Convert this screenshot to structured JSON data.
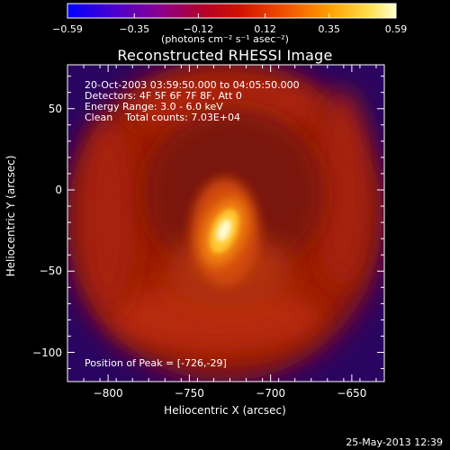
{
  "chart_data": {
    "type": "heatmap",
    "title": "Reconstructed RHESSI Image",
    "xlabel": "Heliocentric X (arcsec)",
    "ylabel": "Heliocentric Y (arcsec)",
    "xlim": [
      -825,
      -630
    ],
    "ylim": [
      -118,
      77
    ],
    "x_ticks": [
      -800,
      -750,
      -700,
      -650
    ],
    "y_ticks": [
      -100,
      -50,
      0,
      50
    ],
    "x_tick_labels": [
      "−800",
      "−750",
      "−700",
      "−650"
    ],
    "y_tick_labels": [
      "−100",
      "−50",
      "0",
      "50"
    ],
    "colorbar": {
      "range": [
        -0.59,
        0.59
      ],
      "ticks": [
        -0.59,
        -0.35,
        -0.12,
        0.12,
        0.35,
        0.59
      ],
      "tick_labels": [
        "−0.59",
        "−0.35",
        "−0.12",
        "0.12",
        "0.35",
        "0.59"
      ],
      "units": "(photons cm⁻² s⁻¹ asec⁻²)",
      "colormap": "hot"
    },
    "peak": {
      "x": -726,
      "y": -29,
      "value": 0.59
    },
    "annotations": {
      "time_range": "20-Oct-2003 03:59:50.000 to 04:05:50.000",
      "detectors": "Detectors: 4F 5F 6F 7F 8F, Att 0",
      "energy": "Energy Range: 3.0 - 6.0 keV",
      "clean": "Clean    Total counts: 7.03E+04",
      "peak_text": "Position of Peak = [-726,-29]"
    },
    "timestamp": "25-May-2013 12:39"
  }
}
